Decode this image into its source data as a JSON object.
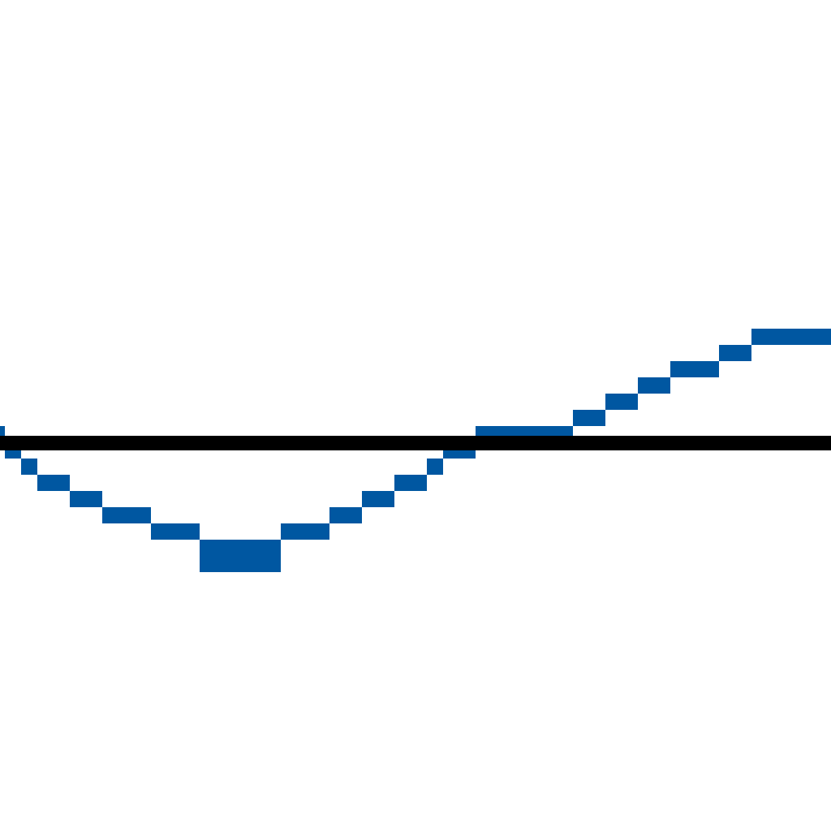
{
  "chart_data": {
    "type": "line",
    "title": "",
    "xlabel": "",
    "ylabel": "",
    "grid": false,
    "legend": "none",
    "axes_visible": false,
    "baseline_value": 0,
    "xlim": [
      0,
      51
    ],
    "ylim": [
      -10,
      10
    ],
    "pixelated_step_rendering": true,
    "colors": {
      "series": "#0057a1",
      "baseline": "#000000",
      "background": "#ffffff"
    },
    "series": [
      {
        "x": [
          0,
          1,
          2,
          3,
          4,
          5,
          6,
          7,
          8,
          9,
          10,
          11,
          12,
          13,
          14,
          15,
          16,
          17,
          18,
          19,
          20,
          21,
          22,
          23,
          24,
          25,
          26,
          27,
          28,
          29,
          30,
          31,
          32,
          33,
          34,
          35,
          36,
          37,
          38,
          39,
          40,
          41,
          42,
          43,
          44,
          45,
          46,
          47,
          48,
          49,
          50
        ],
        "values": [
          0.5,
          -0.5,
          -1.5,
          -2.5,
          -2.5,
          -3.5,
          -3.5,
          -4.5,
          -4.5,
          -4.5,
          -5.5,
          -5.5,
          -5.5,
          -6.5,
          -6.5,
          -6.5,
          -6.5,
          -6.5,
          -5.5,
          -5.5,
          -5.5,
          -4.5,
          -4.5,
          -3.5,
          -3.5,
          -2.5,
          -2.5,
          -1.5,
          -0.5,
          -0.5,
          0.5,
          0.5,
          0.5,
          0.5,
          0.5,
          0.5,
          1.5,
          1.5,
          2.5,
          2.5,
          3.5,
          3.5,
          4.5,
          4.5,
          4.5,
          5.5,
          5.5,
          6.5,
          6.5,
          6.5,
          6.5
        ]
      },
      {
        "x": [
          13,
          14,
          15,
          16,
          17
        ],
        "values": [
          -7.5,
          -7.5,
          -7.5,
          -7.5,
          -7.5
        ]
      }
    ]
  }
}
